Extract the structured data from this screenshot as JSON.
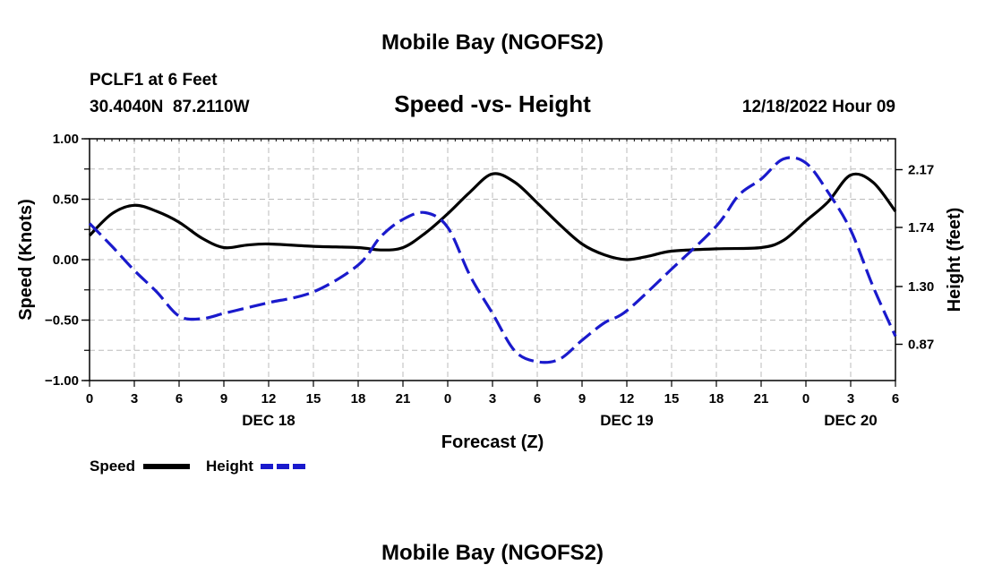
{
  "header": {
    "top_title": "Mobile Bay (NGOFS2)",
    "station_line1": "PCLF1 at 6 Feet",
    "station_line2": "30.4040N  87.2110W",
    "plot_title": "Speed -vs- Height",
    "datetime": "12/18/2022 Hour 09",
    "bottom_title": "Mobile Bay (NGOFS2)"
  },
  "colors": {
    "speed": "#000000",
    "height": "#1a1acc",
    "grid": "#bbbbbb"
  },
  "chart_data": {
    "type": "line",
    "title": "Speed -vs- Height",
    "xlabel": "Forecast (Z)",
    "ylabel": "Speed (Knots)",
    "y2label": "Height (feet)",
    "x_range_hours": [
      0,
      54
    ],
    "x_ticks": [
      {
        "h": 0,
        "label": "0"
      },
      {
        "h": 3,
        "label": "3"
      },
      {
        "h": 6,
        "label": "6"
      },
      {
        "h": 9,
        "label": "9"
      },
      {
        "h": 12,
        "label": "12"
      },
      {
        "h": 15,
        "label": "15"
      },
      {
        "h": 18,
        "label": "18"
      },
      {
        "h": 21,
        "label": "21"
      },
      {
        "h": 24,
        "label": "0"
      },
      {
        "h": 27,
        "label": "3"
      },
      {
        "h": 30,
        "label": "6"
      },
      {
        "h": 33,
        "label": "9"
      },
      {
        "h": 36,
        "label": "12"
      },
      {
        "h": 39,
        "label": "15"
      },
      {
        "h": 42,
        "label": "18"
      },
      {
        "h": 45,
        "label": "21"
      },
      {
        "h": 48,
        "label": "0"
      },
      {
        "h": 51,
        "label": "3"
      },
      {
        "h": 54,
        "label": "6"
      }
    ],
    "day_labels": [
      {
        "h": 12,
        "label": "DEC 18"
      },
      {
        "h": 36,
        "label": "DEC 19"
      },
      {
        "h": 51,
        "label": "DEC 20"
      }
    ],
    "ylim": [
      -1.0,
      1.0
    ],
    "y_ticks": [
      {
        "v": 1.0,
        "label": "1.00"
      },
      {
        "v": 0.5,
        "label": "0.50"
      },
      {
        "v": 0.0,
        "label": "0.00"
      },
      {
        "v": -0.5,
        "label": "−0.50"
      },
      {
        "v": -1.0,
        "label": "−1.00"
      }
    ],
    "y2lim": [
      0.6,
      2.4
    ],
    "y2_ticks": [
      {
        "v": 2.17,
        "label": "2.17"
      },
      {
        "v": 1.74,
        "label": "1.74"
      },
      {
        "v": 1.3,
        "label": "1.30"
      },
      {
        "v": 0.87,
        "label": "0.87"
      }
    ],
    "grid": true,
    "series": [
      {
        "name": "Speed",
        "axis": "left",
        "style": "solid",
        "x": [
          0,
          1.5,
          3,
          4.5,
          6,
          7.5,
          9,
          10.5,
          12,
          15,
          18,
          19.5,
          21,
          22.5,
          24,
          25.5,
          27,
          28.5,
          30,
          31.5,
          33,
          34.5,
          36,
          37.5,
          39,
          42,
          45,
          46.5,
          48,
          49.5,
          51,
          52.5,
          54
        ],
        "values": [
          0.2,
          0.38,
          0.45,
          0.4,
          0.31,
          0.18,
          0.1,
          0.12,
          0.13,
          0.11,
          0.1,
          0.08,
          0.1,
          0.22,
          0.38,
          0.56,
          0.71,
          0.64,
          0.47,
          0.29,
          0.13,
          0.04,
          0.0,
          0.03,
          0.07,
          0.09,
          0.1,
          0.16,
          0.32,
          0.48,
          0.7,
          0.64,
          0.4
        ]
      },
      {
        "name": "Height",
        "axis": "right",
        "style": "dashed",
        "x": [
          0,
          1.5,
          3,
          4.5,
          6,
          7.5,
          9,
          10.5,
          12,
          15,
          18,
          19.5,
          21,
          22.5,
          24,
          25.5,
          27,
          28.5,
          30,
          31.5,
          33,
          34.5,
          36,
          39,
          42,
          43.5,
          45,
          46.5,
          48,
          49.5,
          51,
          52.5,
          54
        ],
        "values": [
          1.77,
          1.6,
          1.42,
          1.26,
          1.08,
          1.06,
          1.1,
          1.14,
          1.18,
          1.26,
          1.46,
          1.67,
          1.8,
          1.85,
          1.74,
          1.38,
          1.1,
          0.82,
          0.74,
          0.76,
          0.9,
          1.03,
          1.12,
          1.43,
          1.75,
          1.98,
          2.1,
          2.25,
          2.22,
          2.0,
          1.72,
          1.3,
          0.93
        ]
      }
    ]
  }
}
